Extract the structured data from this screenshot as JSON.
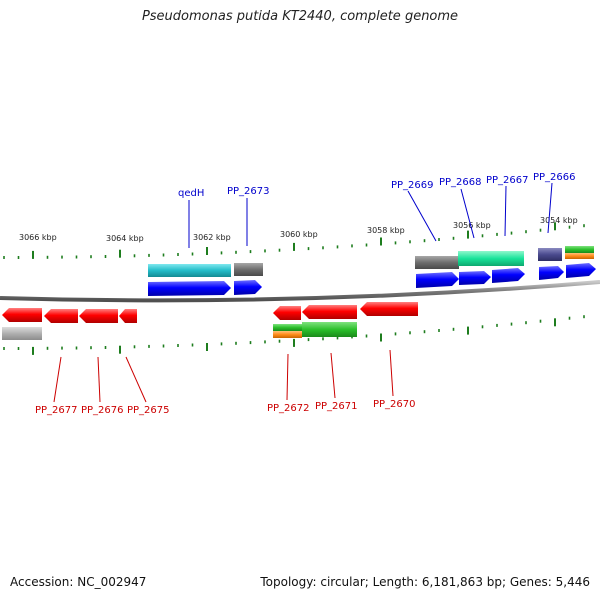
{
  "title": "Pseudomonas putida KT2440, complete genome",
  "footer": {
    "accession": "Accession: NC_002947",
    "summary": "Topology: circular; Length: 6,181,863 bp; Genes: 5,446"
  },
  "colors": {
    "backbone": "#808080",
    "tick": "#1e7d1e",
    "label_top": "#0000cc",
    "label_bottom": "#cc0000",
    "cds_forward": "#0000ff",
    "cds_reverse": "#ff0000",
    "teal": "#22bcc8",
    "mint": "#19e39a",
    "gray": "#6e6e6e",
    "light_gray": "#b0b0b0",
    "green": "#2bc02b",
    "orange": "#ff8c1a",
    "purple": "#4b4b8f"
  },
  "scale_labels": [
    {
      "text": "3066 kbp"
    },
    {
      "text": "3064 kbp"
    },
    {
      "text": "3062 kbp"
    },
    {
      "text": "3060 kbp"
    },
    {
      "text": "3058 kbp"
    },
    {
      "text": "3056 kbp"
    },
    {
      "text": "3054 kbp"
    }
  ],
  "gene_labels_top": [
    "qedH",
    "PP_2673",
    "PP_2669",
    "PP_2668",
    "PP_2667",
    "PP_2666"
  ],
  "gene_labels_bottom": [
    "PP_2677",
    "PP_2676",
    "PP_2675",
    "PP_2672",
    "PP_2671",
    "PP_2670"
  ]
}
